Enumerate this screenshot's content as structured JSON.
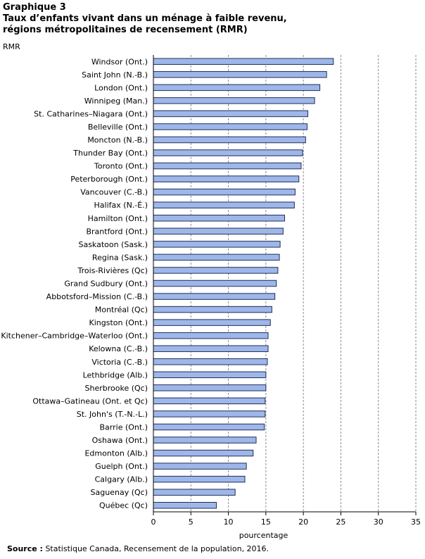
{
  "header": {
    "graph_number": "Graphique  3",
    "title_line1": "Taux d’enfants vivant dans un ménage à faible revenu,",
    "title_line2": "régions métropolitaines  de recensement (RMR)"
  },
  "footer": {
    "source_label": "Source :",
    "source_text": " Statistique Canada, Recensement de la population, 2016."
  },
  "colors": {
    "bar_fill": "#9fb7e8",
    "bar_stroke": "#1f2f5c",
    "grid": "#8c8c8c",
    "axis": "#000000"
  },
  "chart_data": {
    "type": "bar",
    "orientation": "horizontal",
    "ylabel": "RMR",
    "xlabel": "pourcentage",
    "xlim": [
      0,
      35
    ],
    "xticks": [
      0,
      5,
      10,
      15,
      20,
      25,
      30,
      35
    ],
    "grid": true,
    "categories": [
      "Windsor (Ont.)",
      "Saint John (N.-B.)",
      "London (Ont.)",
      "Winnipeg (Man.)",
      "St. Catharines–Niagara (Ont.)",
      "Belleville (Ont.)",
      "Moncton (N.-B.)",
      "Thunder Bay (Ont.)",
      "Toronto (Ont.)",
      "Peterborough (Ont.)",
      "Vancouver (C.-B.)",
      "Halifax (N.-É.)",
      "Hamilton (Ont.)",
      "Brantford (Ont.)",
      "Saskatoon (Sask.)",
      "Regina (Sask.)",
      "Trois-Rivières (Qc)",
      "Grand Sudbury (Ont.)",
      "Abbotsford–Mission (C.-B.)",
      "Montréal (Qc)",
      "Kingston (Ont.)",
      "Kitchener–Cambridge–Waterloo (Ont.)",
      "Kelowna (C.-B.)",
      "Victoria (C.-B.)",
      "Lethbridge (Alb.)",
      "Sherbrooke (Qc)",
      "Ottawa–Gatineau (Ont. et Qc)",
      "St. John's (T.-N.-L.)",
      "Barrie (Ont.)",
      "Oshawa (Ont.)",
      "Edmonton (Alb.)",
      "Guelph (Ont.)",
      "Calgary (Alb.)",
      "Saguenay (Qc)",
      "Québec (Qc)"
    ],
    "values": [
      24.0,
      23.1,
      22.2,
      21.5,
      20.6,
      20.5,
      20.3,
      19.9,
      19.7,
      19.4,
      18.9,
      18.8,
      17.5,
      17.3,
      16.9,
      16.8,
      16.6,
      16.4,
      16.2,
      15.8,
      15.6,
      15.3,
      15.3,
      15.2,
      15.0,
      15.0,
      14.9,
      14.9,
      14.8,
      13.7,
      13.3,
      12.4,
      12.2,
      10.9,
      8.4
    ]
  }
}
